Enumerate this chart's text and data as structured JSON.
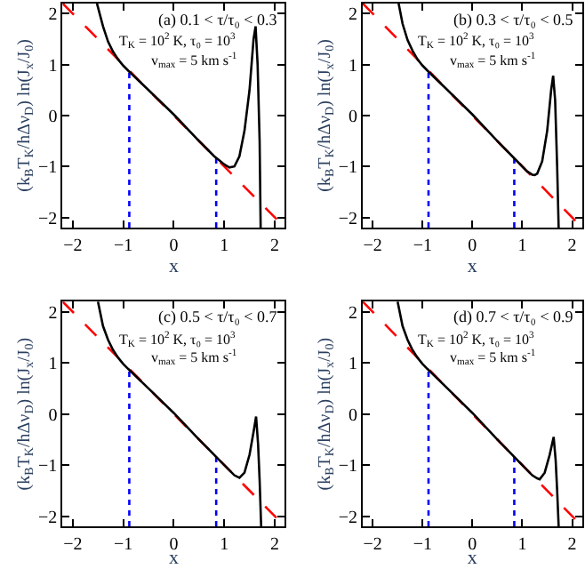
{
  "chart_data": [
    {
      "type": "line",
      "xlabel": "x",
      "ylabel": "(k$_{B}$T$_{K}$/hΔν$_{D}$) ln(J$_{x}$/J$_{0}$)",
      "annotations": [
        "(a) 0.1 < τ/τ₀ < 0.3",
        "T$_{K}$ = 10$^{2}$ K, τ₀ = 10$^{3}$",
        "v$_{max}$ = 5 km s$^{-1}$"
      ],
      "xlim": [
        -2.2,
        2.2
      ],
      "ylim": [
        -2.2,
        2.2
      ],
      "xticks": [
        -2,
        -1,
        0,
        1,
        2
      ],
      "yticks": [
        -2,
        -1,
        0,
        1,
        2
      ],
      "series": [
        {
          "color": "#ff0000",
          "line_style": "dashed",
          "x": [
            -2.2,
            2.2
          ],
          "values": [
            2.2,
            -2.2
          ]
        },
        {
          "color": "#0000ff",
          "line_style": "dotted",
          "x": [
            -0.88,
            -0.88
          ],
          "values": [
            -2.2,
            0.88
          ]
        },
        {
          "color": "#0000ff",
          "line_style": "dotted",
          "x": [
            0.84,
            0.84
          ],
          "values": [
            -2.2,
            -0.84
          ]
        },
        {
          "color": "#000000",
          "line_style": "solid",
          "x": [
            -1.52,
            -1.4,
            -1.3,
            -1.2,
            -1.1,
            -1.0,
            -0.9,
            -0.5,
            0,
            0.5,
            0.8,
            0.9,
            1.0,
            1.1,
            1.2,
            1.3,
            1.4,
            1.5,
            1.58,
            1.62,
            1.66,
            1.7,
            1.72
          ],
          "values": [
            2.2,
            1.75,
            1.45,
            1.25,
            1.1,
            0.98,
            0.88,
            0.5,
            0.02,
            -0.5,
            -0.8,
            -0.88,
            -0.96,
            -1.02,
            -1.0,
            -0.8,
            -0.3,
            0.5,
            1.5,
            1.75,
            1.0,
            -0.5,
            -2.2
          ]
        }
      ]
    },
    {
      "type": "line",
      "xlabel": "x",
      "ylabel": "(k$_{B}$T$_{K}$/hΔν$_{D}$) ln(J$_{x}$/J$_{0}$)",
      "annotations": [
        "(b) 0.3 < τ/τ₀ < 0.5",
        "T$_{K}$ = 10$^{2}$ K, τ₀ = 10$^{3}$",
        "v$_{max}$ = 5 km s$^{-1}$"
      ],
      "xlim": [
        -2.2,
        2.2
      ],
      "ylim": [
        -2.2,
        2.2
      ],
      "xticks": [
        -2,
        -1,
        0,
        1,
        2
      ],
      "yticks": [
        -2,
        -1,
        0,
        1,
        2
      ],
      "series": [
        {
          "color": "#ff0000",
          "line_style": "dashed",
          "x": [
            -2.2,
            2.2
          ],
          "values": [
            2.2,
            -2.2
          ]
        },
        {
          "color": "#0000ff",
          "line_style": "dotted",
          "x": [
            -0.88,
            -0.88
          ],
          "values": [
            -2.2,
            0.88
          ]
        },
        {
          "color": "#0000ff",
          "line_style": "dotted",
          "x": [
            0.84,
            0.84
          ],
          "values": [
            -2.2,
            -0.84
          ]
        },
        {
          "color": "#000000",
          "line_style": "solid",
          "x": [
            -1.48,
            -1.4,
            -1.3,
            -1.2,
            -1.1,
            -1.0,
            -0.9,
            -0.5,
            0,
            0.5,
            0.9,
            1.0,
            1.1,
            1.2,
            1.25,
            1.3,
            1.4,
            1.5,
            1.58,
            1.62,
            1.66,
            1.7,
            1.73
          ],
          "values": [
            2.2,
            1.8,
            1.48,
            1.27,
            1.1,
            0.98,
            0.88,
            0.5,
            0.02,
            -0.5,
            -0.9,
            -1.0,
            -1.1,
            -1.16,
            -1.17,
            -1.14,
            -0.9,
            -0.3,
            0.5,
            0.78,
            0.3,
            -1.0,
            -2.2
          ]
        }
      ]
    },
    {
      "type": "line",
      "xlabel": "x",
      "ylabel": "(k$_{B}$T$_{K}$/hΔν$_{D}$) ln(J$_{x}$/J$_{0}$)",
      "annotations": [
        "(c) 0.5 < τ/τ₀ < 0.7",
        "T$_{K}$ = 10$^{2}$ K, τ₀ = 10$^{3}$",
        "v$_{max}$ = 5 km s$^{-1}$"
      ],
      "xlim": [
        -2.2,
        2.2
      ],
      "ylim": [
        -2.2,
        2.2
      ],
      "xticks": [
        -2,
        -1,
        0,
        1,
        2
      ],
      "yticks": [
        -2,
        -1,
        0,
        1,
        2
      ],
      "series": [
        {
          "color": "#ff0000",
          "line_style": "dashed",
          "x": [
            -2.2,
            2.2
          ],
          "values": [
            2.2,
            -2.2
          ]
        },
        {
          "color": "#0000ff",
          "line_style": "dotted",
          "x": [
            -0.88,
            -0.88
          ],
          "values": [
            -2.2,
            0.88
          ]
        },
        {
          "color": "#0000ff",
          "line_style": "dotted",
          "x": [
            0.84,
            0.84
          ],
          "values": [
            -2.2,
            -0.84
          ]
        },
        {
          "color": "#000000",
          "line_style": "solid",
          "x": [
            -1.5,
            -1.4,
            -1.3,
            -1.2,
            -1.1,
            -1.0,
            -0.9,
            -0.5,
            0,
            0.5,
            0.9,
            1.0,
            1.1,
            1.2,
            1.3,
            1.4,
            1.5,
            1.58,
            1.63,
            1.67,
            1.7,
            1.73
          ],
          "values": [
            2.2,
            1.72,
            1.45,
            1.25,
            1.1,
            0.98,
            0.88,
            0.5,
            0.02,
            -0.5,
            -0.9,
            -1.0,
            -1.1,
            -1.2,
            -1.25,
            -1.15,
            -0.8,
            -0.35,
            -0.05,
            -0.6,
            -1.3,
            -2.2
          ]
        }
      ]
    },
    {
      "type": "line",
      "xlabel": "x",
      "ylabel": "(k$_{B}$T$_{K}$/hΔν$_{D}$) ln(J$_{x}$/J$_{0}$)",
      "annotations": [
        "(d) 0.7 < τ/τ₀ < 0.9",
        "T$_{K}$ = 10$^{2}$ K, τ₀ = 10$^{3}$",
        "v$_{max}$ = 5 km s$^{-1}$"
      ],
      "xlim": [
        -2.2,
        2.2
      ],
      "ylim": [
        -2.2,
        2.2
      ],
      "xticks": [
        -2,
        -1,
        0,
        1,
        2
      ],
      "yticks": [
        -2,
        -1,
        0,
        1,
        2
      ],
      "series": [
        {
          "color": "#ff0000",
          "line_style": "dashed",
          "x": [
            -2.2,
            2.2
          ],
          "values": [
            2.2,
            -2.2
          ]
        },
        {
          "color": "#0000ff",
          "line_style": "dotted",
          "x": [
            -0.88,
            -0.88
          ],
          "values": [
            -2.2,
            0.88
          ]
        },
        {
          "color": "#0000ff",
          "line_style": "dotted",
          "x": [
            0.84,
            0.84
          ],
          "values": [
            -2.2,
            -0.84
          ]
        },
        {
          "color": "#000000",
          "line_style": "solid",
          "x": [
            -1.5,
            -1.4,
            -1.3,
            -1.2,
            -1.1,
            -1.0,
            -0.9,
            -0.5,
            0,
            0.5,
            0.9,
            1.0,
            1.1,
            1.2,
            1.3,
            1.35,
            1.45,
            1.55,
            1.63,
            1.67,
            1.7,
            1.73
          ],
          "values": [
            2.2,
            1.72,
            1.45,
            1.25,
            1.1,
            0.98,
            0.88,
            0.5,
            0.02,
            -0.5,
            -0.9,
            -1.0,
            -1.1,
            -1.2,
            -1.26,
            -1.28,
            -1.15,
            -0.8,
            -0.45,
            -0.9,
            -1.5,
            -2.2
          ]
        }
      ]
    }
  ]
}
